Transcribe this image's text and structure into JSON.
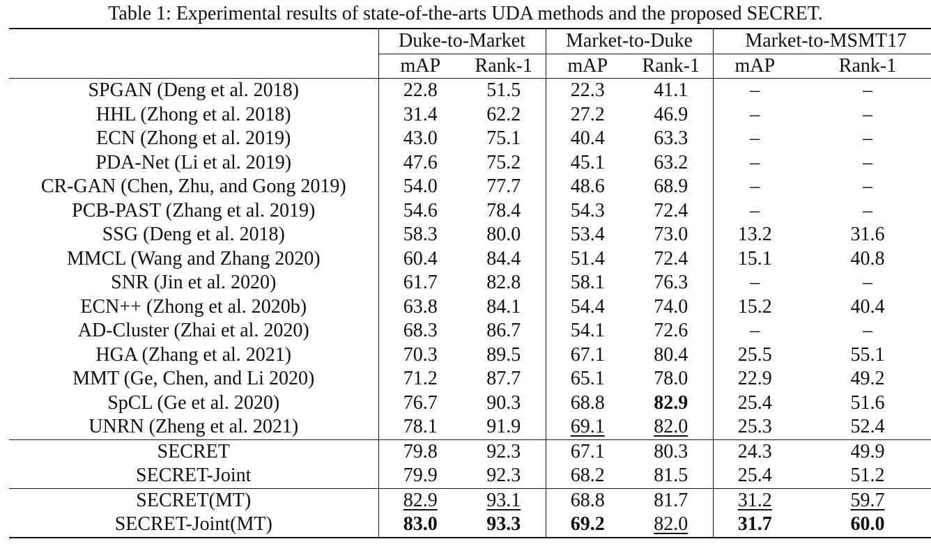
{
  "caption": "Table 1: Experimental results of state-of-the-arts UDA methods and the proposed SECRET.",
  "groups": [
    "Duke-to-Market",
    "Market-to-Duke",
    "Market-to-MSMT17"
  ],
  "subheaders": [
    "mAP",
    "Rank-1",
    "mAP",
    "Rank-1",
    "mAP",
    "Rank-1"
  ],
  "rows": [
    {
      "method": "SPGAN (Deng et al. 2018)",
      "cells": [
        "22.8",
        "51.5",
        "22.3",
        "41.1",
        "–",
        "–"
      ]
    },
    {
      "method": "HHL (Zhong et al. 2018)",
      "cells": [
        "31.4",
        "62.2",
        "27.2",
        "46.9",
        "–",
        "–"
      ]
    },
    {
      "method": "ECN (Zhong et al. 2019)",
      "cells": [
        "43.0",
        "75.1",
        "40.4",
        "63.3",
        "–",
        "–"
      ]
    },
    {
      "method": "PDA-Net (Li et al. 2019)",
      "cells": [
        "47.6",
        "75.2",
        "45.1",
        "63.2",
        "–",
        "–"
      ]
    },
    {
      "method": "CR-GAN (Chen, Zhu, and Gong 2019)",
      "cells": [
        "54.0",
        "77.7",
        "48.6",
        "68.9",
        "–",
        "–"
      ]
    },
    {
      "method": "PCB-PAST (Zhang et al. 2019)",
      "cells": [
        "54.6",
        "78.4",
        "54.3",
        "72.4",
        "–",
        "–"
      ]
    },
    {
      "method": "SSG (Deng et al. 2018)",
      "cells": [
        "58.3",
        "80.0",
        "53.4",
        "73.0",
        "13.2",
        "31.6"
      ]
    },
    {
      "method": "MMCL (Wang and Zhang 2020)",
      "cells": [
        "60.4",
        "84.4",
        "51.4",
        "72.4",
        "15.1",
        "40.8"
      ]
    },
    {
      "method": "SNR (Jin et al. 2020)",
      "cells": [
        "61.7",
        "82.8",
        "58.1",
        "76.3",
        "–",
        "–"
      ]
    },
    {
      "method": "ECN++ (Zhong et al. 2020b)",
      "cells": [
        "63.8",
        "84.1",
        "54.4",
        "74.0",
        "15.2",
        "40.4"
      ]
    },
    {
      "method": "AD-Cluster (Zhai et al. 2020)",
      "cells": [
        "68.3",
        "86.7",
        "54.1",
        "72.6",
        "–",
        "–"
      ]
    },
    {
      "method": "HGA (Zhang et al. 2021)",
      "cells": [
        "70.3",
        "89.5",
        "67.1",
        "80.4",
        "25.5",
        "55.1"
      ]
    },
    {
      "method": "MMT (Ge, Chen, and Li 2020)",
      "cells": [
        "71.2",
        "87.7",
        "65.1",
        "78.0",
        "22.9",
        "49.2"
      ]
    },
    {
      "method": "SpCL (Ge et al. 2020)",
      "cells": [
        "76.7",
        "90.3",
        "68.8",
        "82.9",
        "25.4",
        "51.6"
      ]
    },
    {
      "method": "UNRN (Zheng et al. 2021)",
      "cells": [
        "78.1",
        "91.9",
        "69.1",
        "82.0",
        "25.3",
        "52.4"
      ]
    },
    {
      "method": "SECRET",
      "cells": [
        "79.8",
        "92.3",
        "67.1",
        "80.3",
        "24.3",
        "49.9"
      ]
    },
    {
      "method": "SECRET-Joint",
      "cells": [
        "79.9",
        "92.3",
        "68.2",
        "81.5",
        "25.4",
        "51.2"
      ]
    },
    {
      "method": "SECRET(MT)",
      "cells": [
        "82.9",
        "93.1",
        "68.8",
        "81.7",
        "31.2",
        "59.7"
      ]
    },
    {
      "method": "SECRET-Joint(MT)",
      "cells": [
        "83.0",
        "93.3",
        "69.2",
        "82.0",
        "31.7",
        "60.0"
      ]
    }
  ]
}
